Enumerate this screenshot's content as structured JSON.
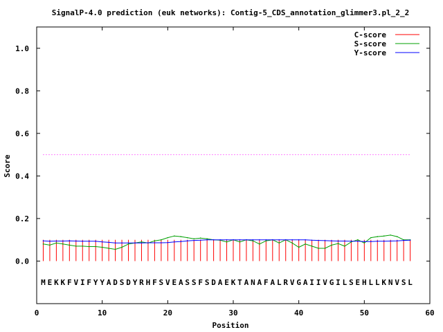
{
  "chart_data": {
    "type": "line",
    "title": "SignalP-4.0 prediction (euk networks): Contig-5_CDS_annotation_glimmer3.pl_2_2",
    "xlabel": "Position",
    "ylabel": "Score",
    "xlim": [
      0,
      60
    ],
    "ylim": [
      -0.2,
      1.1
    ],
    "x_ticks": [
      "0",
      "10",
      "20",
      "30",
      "40",
      "50",
      "60"
    ],
    "y_ticks": [
      "0.0",
      "0.2",
      "0.4",
      "0.6",
      "0.8",
      "1.0"
    ],
    "legend_position": "top-right",
    "sequence": [
      "M",
      "E",
      "K",
      "K",
      "F",
      "V",
      "I",
      "F",
      "Y",
      "Y",
      "A",
      "D",
      "S",
      "D",
      "Y",
      "R",
      "H",
      "F",
      "S",
      "V",
      "E",
      "A",
      "S",
      "S",
      "F",
      "S",
      "D",
      "A",
      "E",
      "K",
      "T",
      "A",
      "N",
      "A",
      "F",
      "A",
      "L",
      "R",
      "V",
      "G",
      "A",
      "I",
      "I",
      "V",
      "G",
      "I",
      "L",
      "S",
      "E",
      "H",
      "L",
      "L",
      "K",
      "N",
      "V",
      "S",
      "L"
    ],
    "threshold": {
      "value": 0.5,
      "x_range": [
        1,
        57
      ],
      "color": "#ff00ff"
    },
    "series": [
      {
        "name": "C-score",
        "kind": "impulse",
        "color": "#ff0000",
        "x": [
          1,
          2,
          3,
          4,
          5,
          6,
          7,
          8,
          9,
          10,
          11,
          12,
          13,
          14,
          15,
          16,
          17,
          18,
          19,
          20,
          21,
          22,
          23,
          24,
          25,
          26,
          27,
          28,
          29,
          30,
          31,
          32,
          33,
          34,
          35,
          36,
          37,
          38,
          39,
          40,
          41,
          42,
          43,
          44,
          45,
          46,
          47,
          48,
          49,
          50,
          51,
          52,
          53,
          54,
          55,
          56,
          57
        ],
        "values": [
          0.1,
          0.1,
          0.1,
          0.1,
          0.1,
          0.1,
          0.1,
          0.1,
          0.1,
          0.1,
          0.1,
          0.1,
          0.1,
          0.1,
          0.1,
          0.1,
          0.1,
          0.1,
          0.1,
          0.1,
          0.1,
          0.1,
          0.1,
          0.1,
          0.1,
          0.1,
          0.1,
          0.1,
          0.1,
          0.1,
          0.1,
          0.1,
          0.1,
          0.1,
          0.1,
          0.1,
          0.1,
          0.1,
          0.1,
          0.1,
          0.1,
          0.1,
          0.1,
          0.1,
          0.1,
          0.1,
          0.1,
          0.1,
          0.1,
          0.1,
          0.1,
          0.1,
          0.1,
          0.1,
          0.1,
          0.1,
          0.1
        ]
      },
      {
        "name": "S-score",
        "kind": "line",
        "color": "#00a000",
        "x": [
          1,
          2,
          3,
          4,
          5,
          6,
          7,
          8,
          9,
          10,
          11,
          12,
          13,
          14,
          15,
          16,
          17,
          18,
          19,
          20,
          21,
          22,
          23,
          24,
          25,
          26,
          27,
          28,
          29,
          30,
          31,
          32,
          33,
          34,
          35,
          36,
          37,
          38,
          39,
          40,
          41,
          42,
          43,
          44,
          45,
          46,
          47,
          48,
          49,
          50,
          51,
          52,
          53,
          54,
          55,
          56,
          57
        ],
        "values": [
          0.08,
          0.075,
          0.085,
          0.08,
          0.075,
          0.07,
          0.07,
          0.068,
          0.068,
          0.065,
          0.06,
          0.055,
          0.065,
          0.08,
          0.085,
          0.09,
          0.085,
          0.095,
          0.1,
          0.11,
          0.118,
          0.115,
          0.11,
          0.105,
          0.108,
          0.105,
          0.1,
          0.098,
          0.09,
          0.1,
          0.09,
          0.1,
          0.095,
          0.08,
          0.095,
          0.1,
          0.085,
          0.1,
          0.085,
          0.065,
          0.08,
          0.07,
          0.06,
          0.06,
          0.075,
          0.082,
          0.07,
          0.09,
          0.1,
          0.085,
          0.11,
          0.115,
          0.118,
          0.122,
          0.115,
          0.1,
          0.1
        ]
      },
      {
        "name": "Y-score",
        "kind": "line",
        "color": "#0000ff",
        "x": [
          1,
          2,
          3,
          4,
          5,
          6,
          7,
          8,
          9,
          10,
          11,
          12,
          13,
          14,
          15,
          16,
          17,
          18,
          19,
          20,
          21,
          22,
          23,
          24,
          25,
          26,
          27,
          28,
          29,
          30,
          31,
          32,
          33,
          34,
          35,
          36,
          37,
          38,
          39,
          40,
          41,
          42,
          43,
          44,
          45,
          46,
          47,
          48,
          49,
          50,
          51,
          52,
          53,
          54,
          55,
          56,
          57
        ],
        "values": [
          0.095,
          0.093,
          0.094,
          0.094,
          0.095,
          0.094,
          0.093,
          0.093,
          0.093,
          0.09,
          0.088,
          0.085,
          0.085,
          0.085,
          0.085,
          0.085,
          0.086,
          0.086,
          0.086,
          0.087,
          0.09,
          0.092,
          0.095,
          0.097,
          0.098,
          0.1,
          0.1,
          0.1,
          0.1,
          0.1,
          0.1,
          0.1,
          0.1,
          0.1,
          0.1,
          0.1,
          0.1,
          0.1,
          0.1,
          0.1,
          0.1,
          0.098,
          0.097,
          0.096,
          0.095,
          0.094,
          0.094,
          0.093,
          0.093,
          0.092,
          0.092,
          0.093,
          0.093,
          0.094,
          0.095,
          0.097,
          0.098
        ]
      }
    ]
  }
}
